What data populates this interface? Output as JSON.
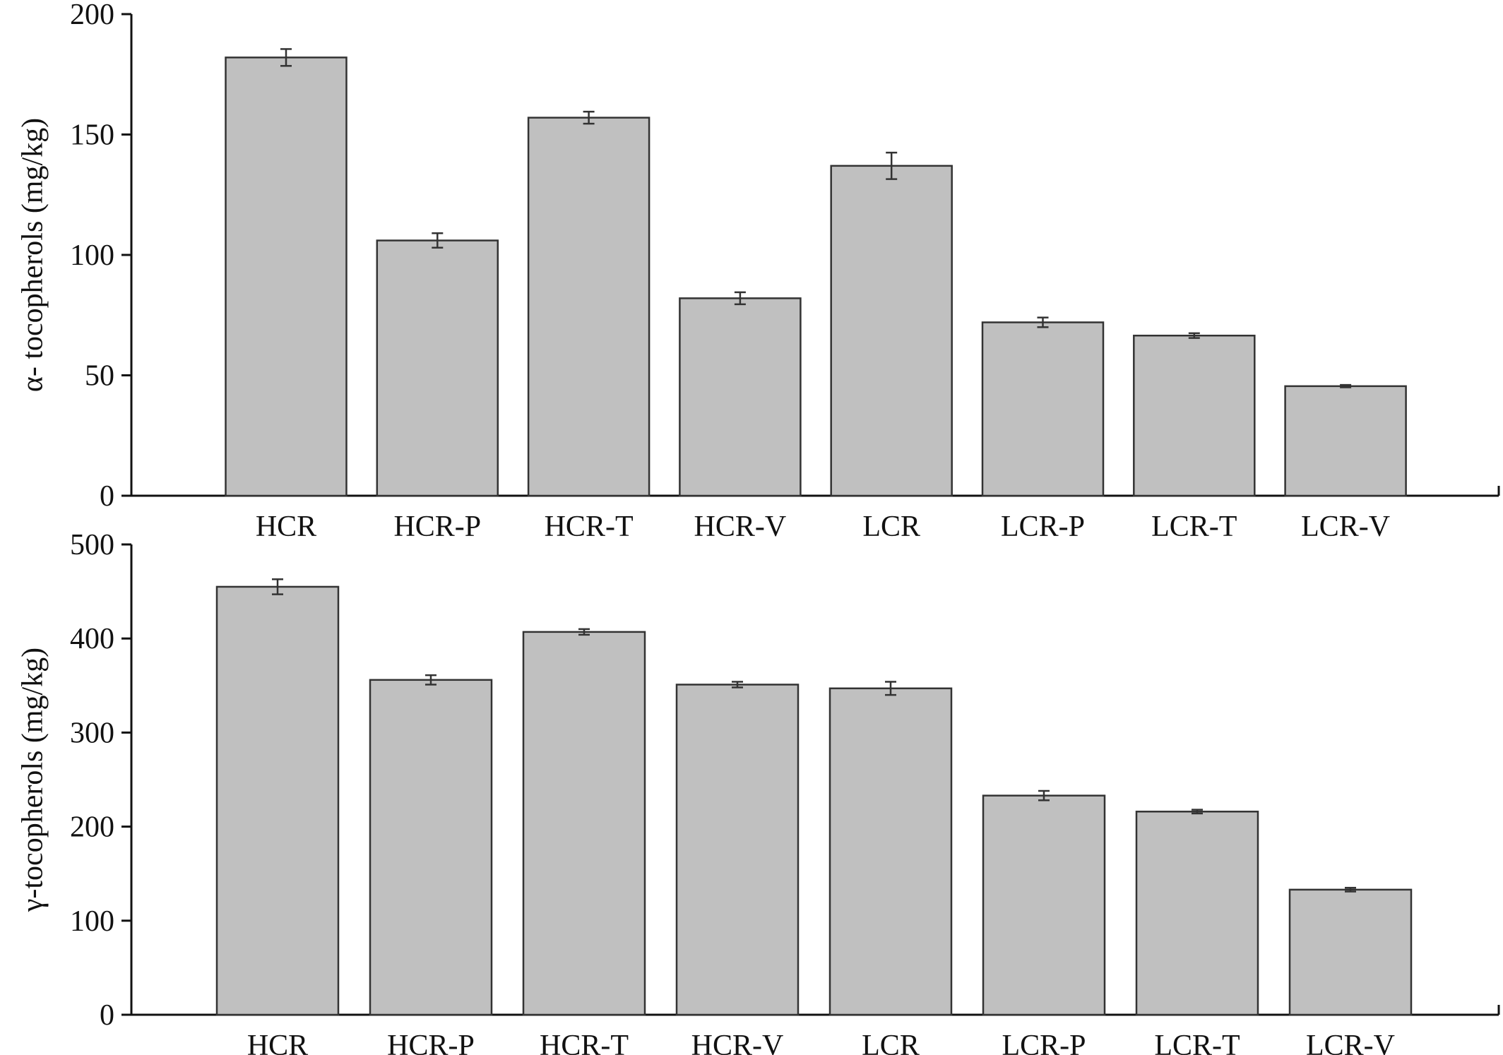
{
  "colors": {
    "bar_fill": "#c0c0c0",
    "bar_stroke": "#333333",
    "axis": "#111111"
  },
  "chart_data": [
    {
      "type": "bar",
      "categories": [
        "HCR",
        "HCR-P",
        "HCR-T",
        "HCR-V",
        "LCR",
        "LCR-P",
        "LCR-T",
        "LCR-V"
      ],
      "values": [
        182,
        106,
        157,
        82,
        137,
        72,
        66.5,
        45.5
      ],
      "errors": [
        3.5,
        3,
        2.5,
        2.5,
        5.5,
        2,
        1,
        0.5
      ],
      "title": "",
      "xlabel": "",
      "ylabel": "α- tocopherols (mg/kg)",
      "ylim": [
        0,
        200
      ],
      "yticks": [
        "0",
        "50",
        "100",
        "150",
        "200"
      ],
      "grid": false,
      "legend": "none"
    },
    {
      "type": "bar",
      "categories": [
        "HCR",
        "HCR-P",
        "HCR-T",
        "HCR-V",
        "LCR",
        "LCR-P",
        "LCR-T",
        "LCR-V"
      ],
      "values": [
        455,
        356,
        407,
        351,
        347,
        233,
        216,
        133
      ],
      "errors": [
        8,
        5,
        3,
        3,
        7,
        5,
        2,
        2
      ],
      "title": "",
      "xlabel": "",
      "ylabel": "γ-tocopherols (mg/kg)",
      "ylim": [
        0,
        500
      ],
      "yticks": [
        "0",
        "100",
        "200",
        "300",
        "400",
        "500"
      ],
      "grid": false,
      "legend": "none"
    }
  ]
}
